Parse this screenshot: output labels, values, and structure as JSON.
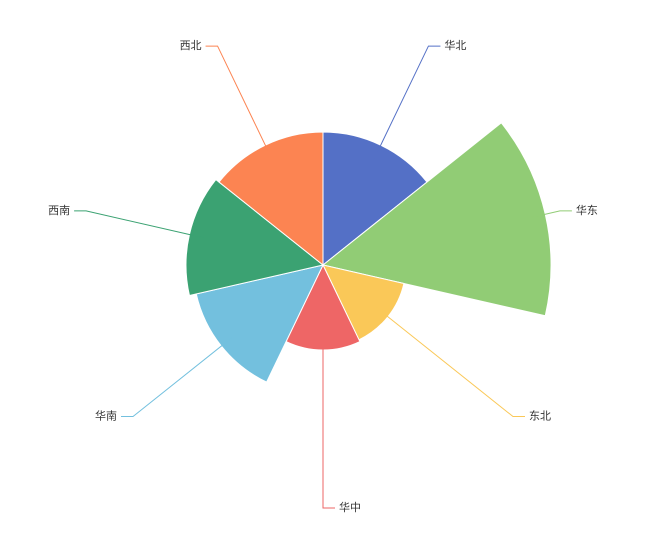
{
  "chart_data": {
    "type": "pie",
    "rose": "radius",
    "categories": [
      "华北",
      "华东",
      "东北",
      "华中",
      "华南",
      "西南",
      "西北"
    ],
    "values": [
      133,
      228,
      83,
      85,
      130,
      137,
      133
    ],
    "colors": [
      "#5470c6",
      "#91cc75",
      "#fac858",
      "#ee6666",
      "#73c0de",
      "#3ba272",
      "#fc8452"
    ]
  }
}
